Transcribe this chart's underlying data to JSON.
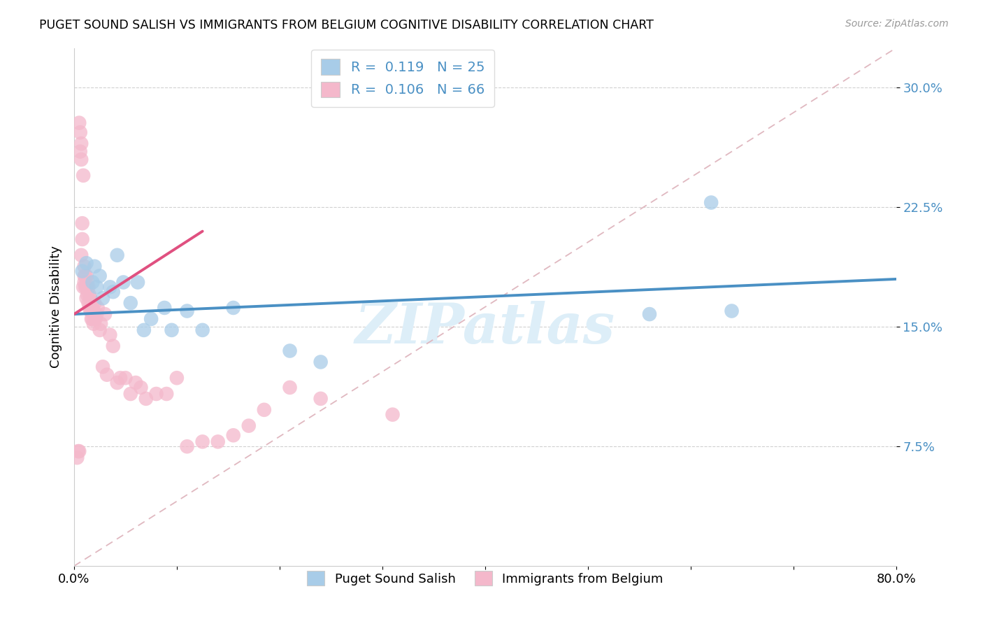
{
  "title": "PUGET SOUND SALISH VS IMMIGRANTS FROM BELGIUM COGNITIVE DISABILITY CORRELATION CHART",
  "source": "Source: ZipAtlas.com",
  "ylabel": "Cognitive Disability",
  "xlim": [
    0,
    0.8
  ],
  "ylim": [
    0,
    0.325
  ],
  "yticks": [
    0.075,
    0.15,
    0.225,
    0.3
  ],
  "ytick_labels": [
    "7.5%",
    "15.0%",
    "22.5%",
    "30.0%"
  ],
  "xticks": [
    0.0,
    0.1,
    0.2,
    0.3,
    0.4,
    0.5,
    0.6,
    0.7,
    0.8
  ],
  "xtick_labels": [
    "0.0%",
    "",
    "",
    "",
    "",
    "",
    "",
    "",
    "80.0%"
  ],
  "blue_color": "#a8cce8",
  "pink_color": "#f4b8cb",
  "blue_line_color": "#4a90c4",
  "pink_line_color": "#e05080",
  "dashed_line_color": "#e0b8c0",
  "axis_color": "#cccccc",
  "text_blue": "#4a90c4",
  "watermark": "ZIPatlas",
  "watermark_color": "#ddeef8",
  "blue_scatter_x": [
    0.008,
    0.012,
    0.018,
    0.02,
    0.022,
    0.025,
    0.028,
    0.035,
    0.038,
    0.042,
    0.048,
    0.055,
    0.062,
    0.068,
    0.075,
    0.088,
    0.095,
    0.11,
    0.125,
    0.155,
    0.21,
    0.24,
    0.56,
    0.62,
    0.64
  ],
  "blue_scatter_y": [
    0.185,
    0.19,
    0.178,
    0.188,
    0.175,
    0.182,
    0.168,
    0.175,
    0.172,
    0.195,
    0.178,
    0.165,
    0.178,
    0.148,
    0.155,
    0.162,
    0.148,
    0.16,
    0.148,
    0.162,
    0.135,
    0.128,
    0.158,
    0.228,
    0.16
  ],
  "pink_scatter_x": [
    0.003,
    0.004,
    0.005,
    0.005,
    0.006,
    0.006,
    0.007,
    0.007,
    0.007,
    0.008,
    0.008,
    0.009,
    0.009,
    0.01,
    0.01,
    0.01,
    0.011,
    0.011,
    0.012,
    0.012,
    0.012,
    0.013,
    0.013,
    0.014,
    0.014,
    0.015,
    0.015,
    0.016,
    0.016,
    0.017,
    0.017,
    0.018,
    0.018,
    0.019,
    0.019,
    0.02,
    0.02,
    0.021,
    0.022,
    0.023,
    0.025,
    0.026,
    0.028,
    0.03,
    0.032,
    0.035,
    0.038,
    0.042,
    0.045,
    0.05,
    0.055,
    0.06,
    0.065,
    0.07,
    0.08,
    0.09,
    0.1,
    0.11,
    0.125,
    0.14,
    0.155,
    0.17,
    0.185,
    0.21,
    0.24,
    0.31
  ],
  "pink_scatter_y": [
    0.068,
    0.072,
    0.072,
    0.278,
    0.272,
    0.26,
    0.255,
    0.265,
    0.195,
    0.205,
    0.215,
    0.245,
    0.175,
    0.178,
    0.182,
    0.188,
    0.175,
    0.182,
    0.168,
    0.175,
    0.182,
    0.17,
    0.178,
    0.165,
    0.175,
    0.162,
    0.17,
    0.16,
    0.168,
    0.155,
    0.162,
    0.155,
    0.165,
    0.152,
    0.16,
    0.155,
    0.165,
    0.155,
    0.158,
    0.162,
    0.148,
    0.152,
    0.125,
    0.158,
    0.12,
    0.145,
    0.138,
    0.115,
    0.118,
    0.118,
    0.108,
    0.115,
    0.112,
    0.105,
    0.108,
    0.108,
    0.118,
    0.075,
    0.078,
    0.078,
    0.082,
    0.088,
    0.098,
    0.112,
    0.105,
    0.095
  ],
  "blue_line_x": [
    0.0,
    0.8
  ],
  "blue_line_y": [
    0.158,
    0.18
  ],
  "pink_line_x": [
    0.0,
    0.125
  ],
  "pink_line_y": [
    0.158,
    0.21
  ]
}
